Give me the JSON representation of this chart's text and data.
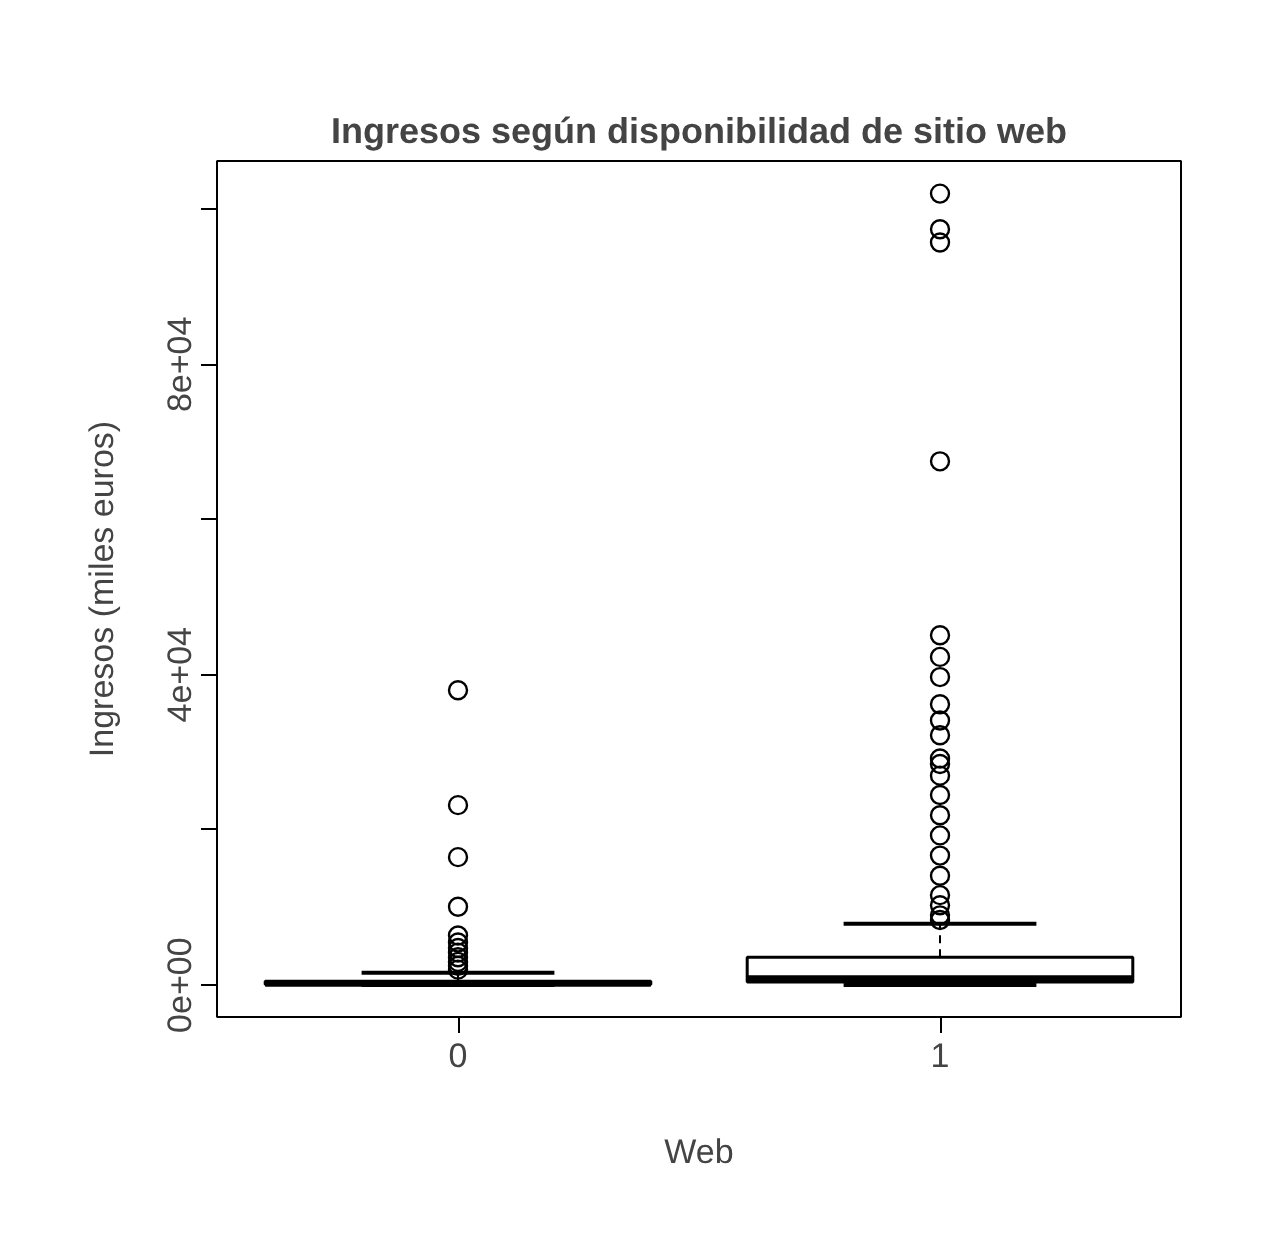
{
  "chart_data": {
    "type": "box",
    "title": "Ingresos según disponibilidad de sitio web",
    "xlabel": "Web",
    "ylabel": "Ingresos (miles euros)",
    "categories": [
      "0",
      "1"
    ],
    "boxes": [
      {
        "low": 20,
        "q1": 100,
        "median": 200,
        "q3": 500,
        "high": 1600,
        "outliers": [
          38000,
          23200,
          16500,
          10100,
          6400,
          5500,
          4800,
          4200,
          3600,
          3000,
          2500,
          2000
        ]
      },
      {
        "low": 20,
        "q1": 400,
        "median": 900,
        "q3": 3600,
        "high": 7900,
        "outliers": [
          102000,
          97400,
          95700,
          67500,
          45100,
          42300,
          39700,
          36200,
          34100,
          32200,
          29200,
          28500,
          27000,
          24500,
          21900,
          19300,
          16700,
          14100,
          11600,
          10300,
          9000,
          8400
        ]
      }
    ],
    "ylim": [
      -4100,
      106200
    ],
    "yticks": [
      {
        "value": 0,
        "label": "0e+00"
      },
      {
        "value": 20000,
        "label": null
      },
      {
        "value": 40000,
        "label": "4e+04"
      },
      {
        "value": 60000,
        "label": null
      },
      {
        "value": 80000,
        "label": "8e+04"
      },
      {
        "value": 100000,
        "label": null
      }
    ],
    "grid": false
  }
}
